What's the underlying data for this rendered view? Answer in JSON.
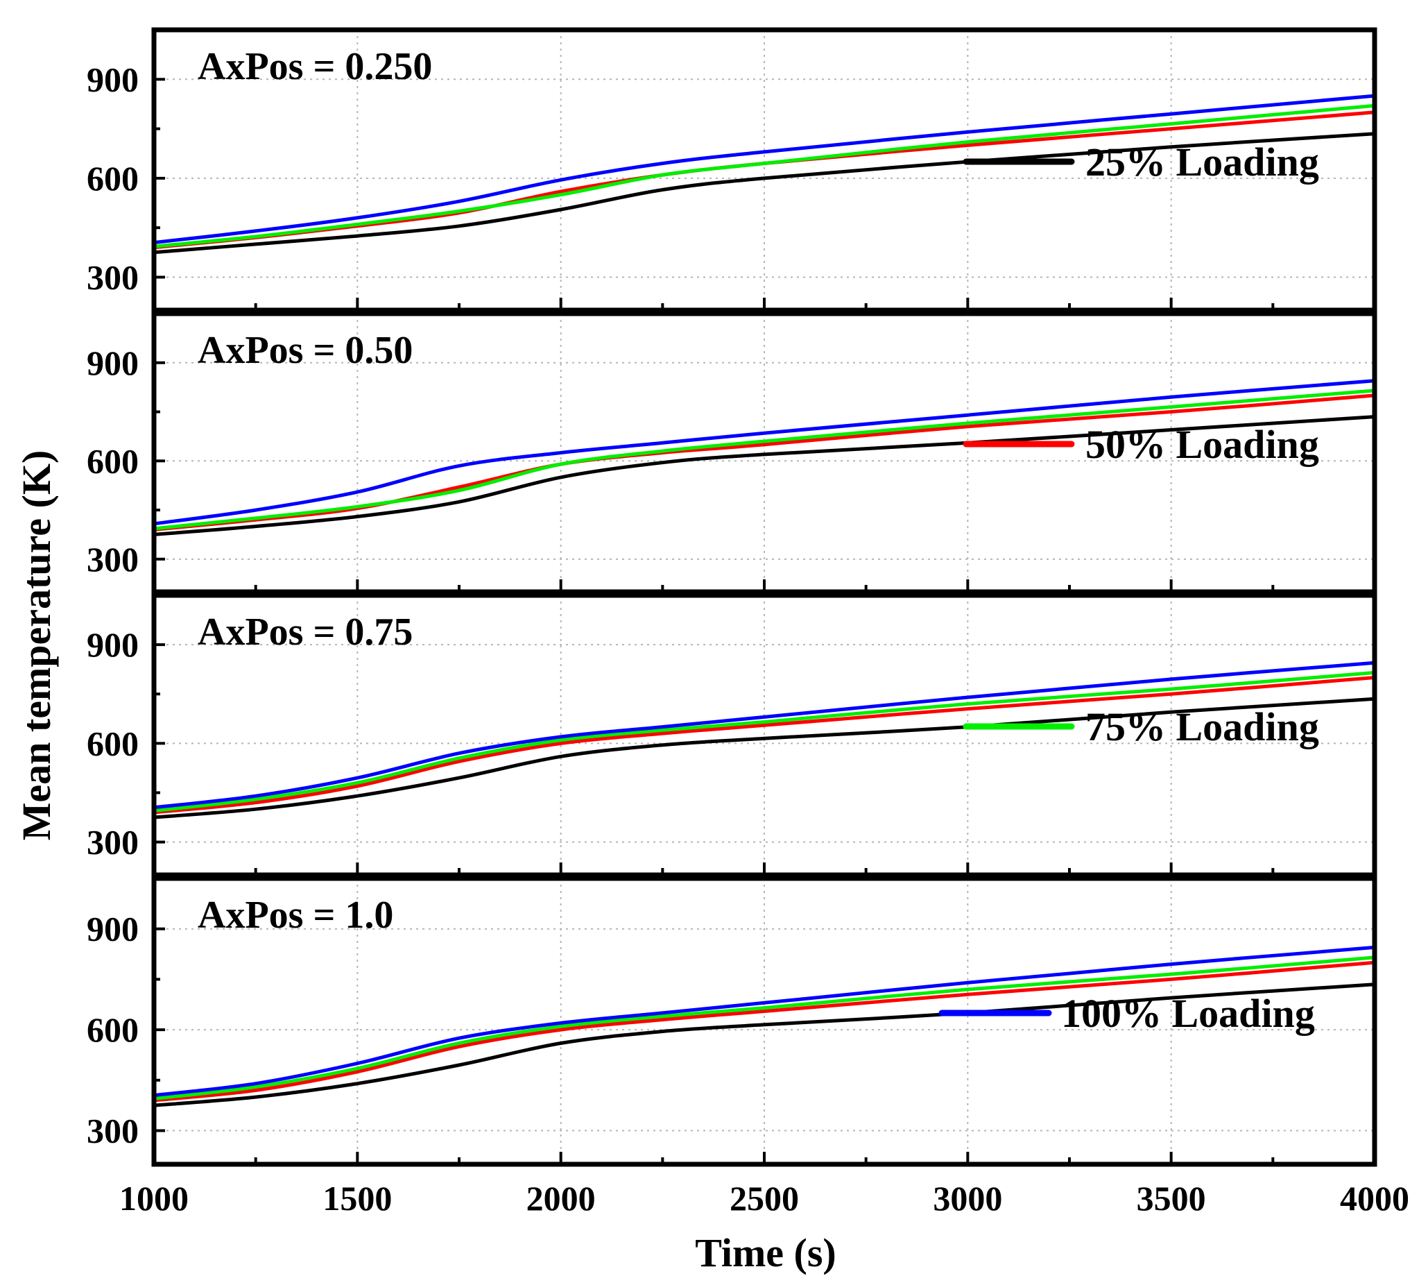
{
  "chart_data": {
    "type": "line",
    "xlabel": "Time (s)",
    "ylabel": "Mean temperature (K)",
    "xlim": [
      1000,
      4000
    ],
    "ylim": [
      200,
      1050
    ],
    "xticks": [
      1000,
      1500,
      2000,
      2500,
      3000,
      3500,
      4000
    ],
    "yticks": [
      300,
      600,
      900
    ],
    "grid": true,
    "legend_position": "right, one entry per panel",
    "colors": {
      "25% Loading": "#000000",
      "50% Loading": "#ff0000",
      "75% Loading": "#00ee00",
      "100% Loading": "#0000ff"
    },
    "panels": [
      {
        "title": "AxPos = 0.250",
        "legend": "25% Loading",
        "x": [
          1000,
          1250,
          1500,
          1750,
          2000,
          2250,
          2500,
          3000,
          3500,
          4000
        ],
        "series": [
          {
            "name": "25% Loading",
            "values": [
              375,
              400,
              425,
              455,
              505,
              565,
              600,
              650,
              695,
              735
            ]
          },
          {
            "name": "50% Loading",
            "values": [
              390,
              420,
              455,
              495,
              560,
              610,
              645,
              700,
              750,
              800
            ]
          },
          {
            "name": "75% Loading",
            "values": [
              393,
              423,
              460,
              500,
              550,
              610,
              645,
              710,
              765,
              820
            ]
          },
          {
            "name": "100% Loading",
            "values": [
              405,
              440,
              480,
              530,
              595,
              645,
              680,
              740,
              795,
              850
            ]
          }
        ]
      },
      {
        "title": "AxPos = 0.50",
        "legend": "50% Loading",
        "x": [
          1000,
          1250,
          1500,
          1750,
          2000,
          2250,
          2500,
          3000,
          3500,
          4000
        ],
        "series": [
          {
            "name": "25% Loading",
            "values": [
              375,
              400,
              430,
              475,
              550,
              595,
              620,
              655,
              695,
              735
            ]
          },
          {
            "name": "50% Loading",
            "values": [
              390,
              420,
              455,
              520,
              590,
              625,
              650,
              705,
              750,
              800
            ]
          },
          {
            "name": "75% Loading",
            "values": [
              393,
              425,
              460,
              510,
              590,
              630,
              660,
              715,
              765,
              815
            ]
          },
          {
            "name": "100% Loading",
            "values": [
              408,
              450,
              505,
              585,
              625,
              655,
              685,
              740,
              795,
              845
            ]
          }
        ]
      },
      {
        "title": "AxPos = 0.75",
        "legend": "75% Loading",
        "x": [
          1000,
          1250,
          1500,
          1750,
          2000,
          2250,
          2500,
          3000,
          3500,
          4000
        ],
        "series": [
          {
            "name": "25% Loading",
            "values": [
              375,
              400,
              440,
              495,
              560,
              595,
              615,
              650,
              695,
              735
            ]
          },
          {
            "name": "50% Loading",
            "values": [
              390,
              420,
              470,
              545,
              600,
              630,
              655,
              705,
              750,
              800
            ]
          },
          {
            "name": "75% Loading",
            "values": [
              395,
              430,
              480,
              555,
              610,
              640,
              665,
              720,
              765,
              815
            ]
          },
          {
            "name": "100% Loading",
            "values": [
              405,
              440,
              495,
              570,
              620,
              650,
              680,
              740,
              795,
              845
            ]
          }
        ]
      },
      {
        "title": "AxPos = 1.0",
        "legend": "100% Loading",
        "x": [
          1000,
          1250,
          1500,
          1750,
          2000,
          2250,
          2500,
          3000,
          3500,
          4000
        ],
        "series": [
          {
            "name": "25% Loading",
            "values": [
              375,
              400,
              440,
              495,
              560,
              595,
              615,
              650,
              695,
              735
            ]
          },
          {
            "name": "50% Loading",
            "values": [
              390,
              420,
              475,
              550,
              600,
              630,
              655,
              705,
              750,
              800
            ]
          },
          {
            "name": "75% Loading",
            "values": [
              395,
              430,
              485,
              560,
              610,
              640,
              665,
              720,
              765,
              815
            ]
          },
          {
            "name": "100% Loading",
            "values": [
              405,
              440,
              500,
              575,
              620,
              650,
              680,
              740,
              795,
              845
            ]
          }
        ]
      }
    ]
  }
}
